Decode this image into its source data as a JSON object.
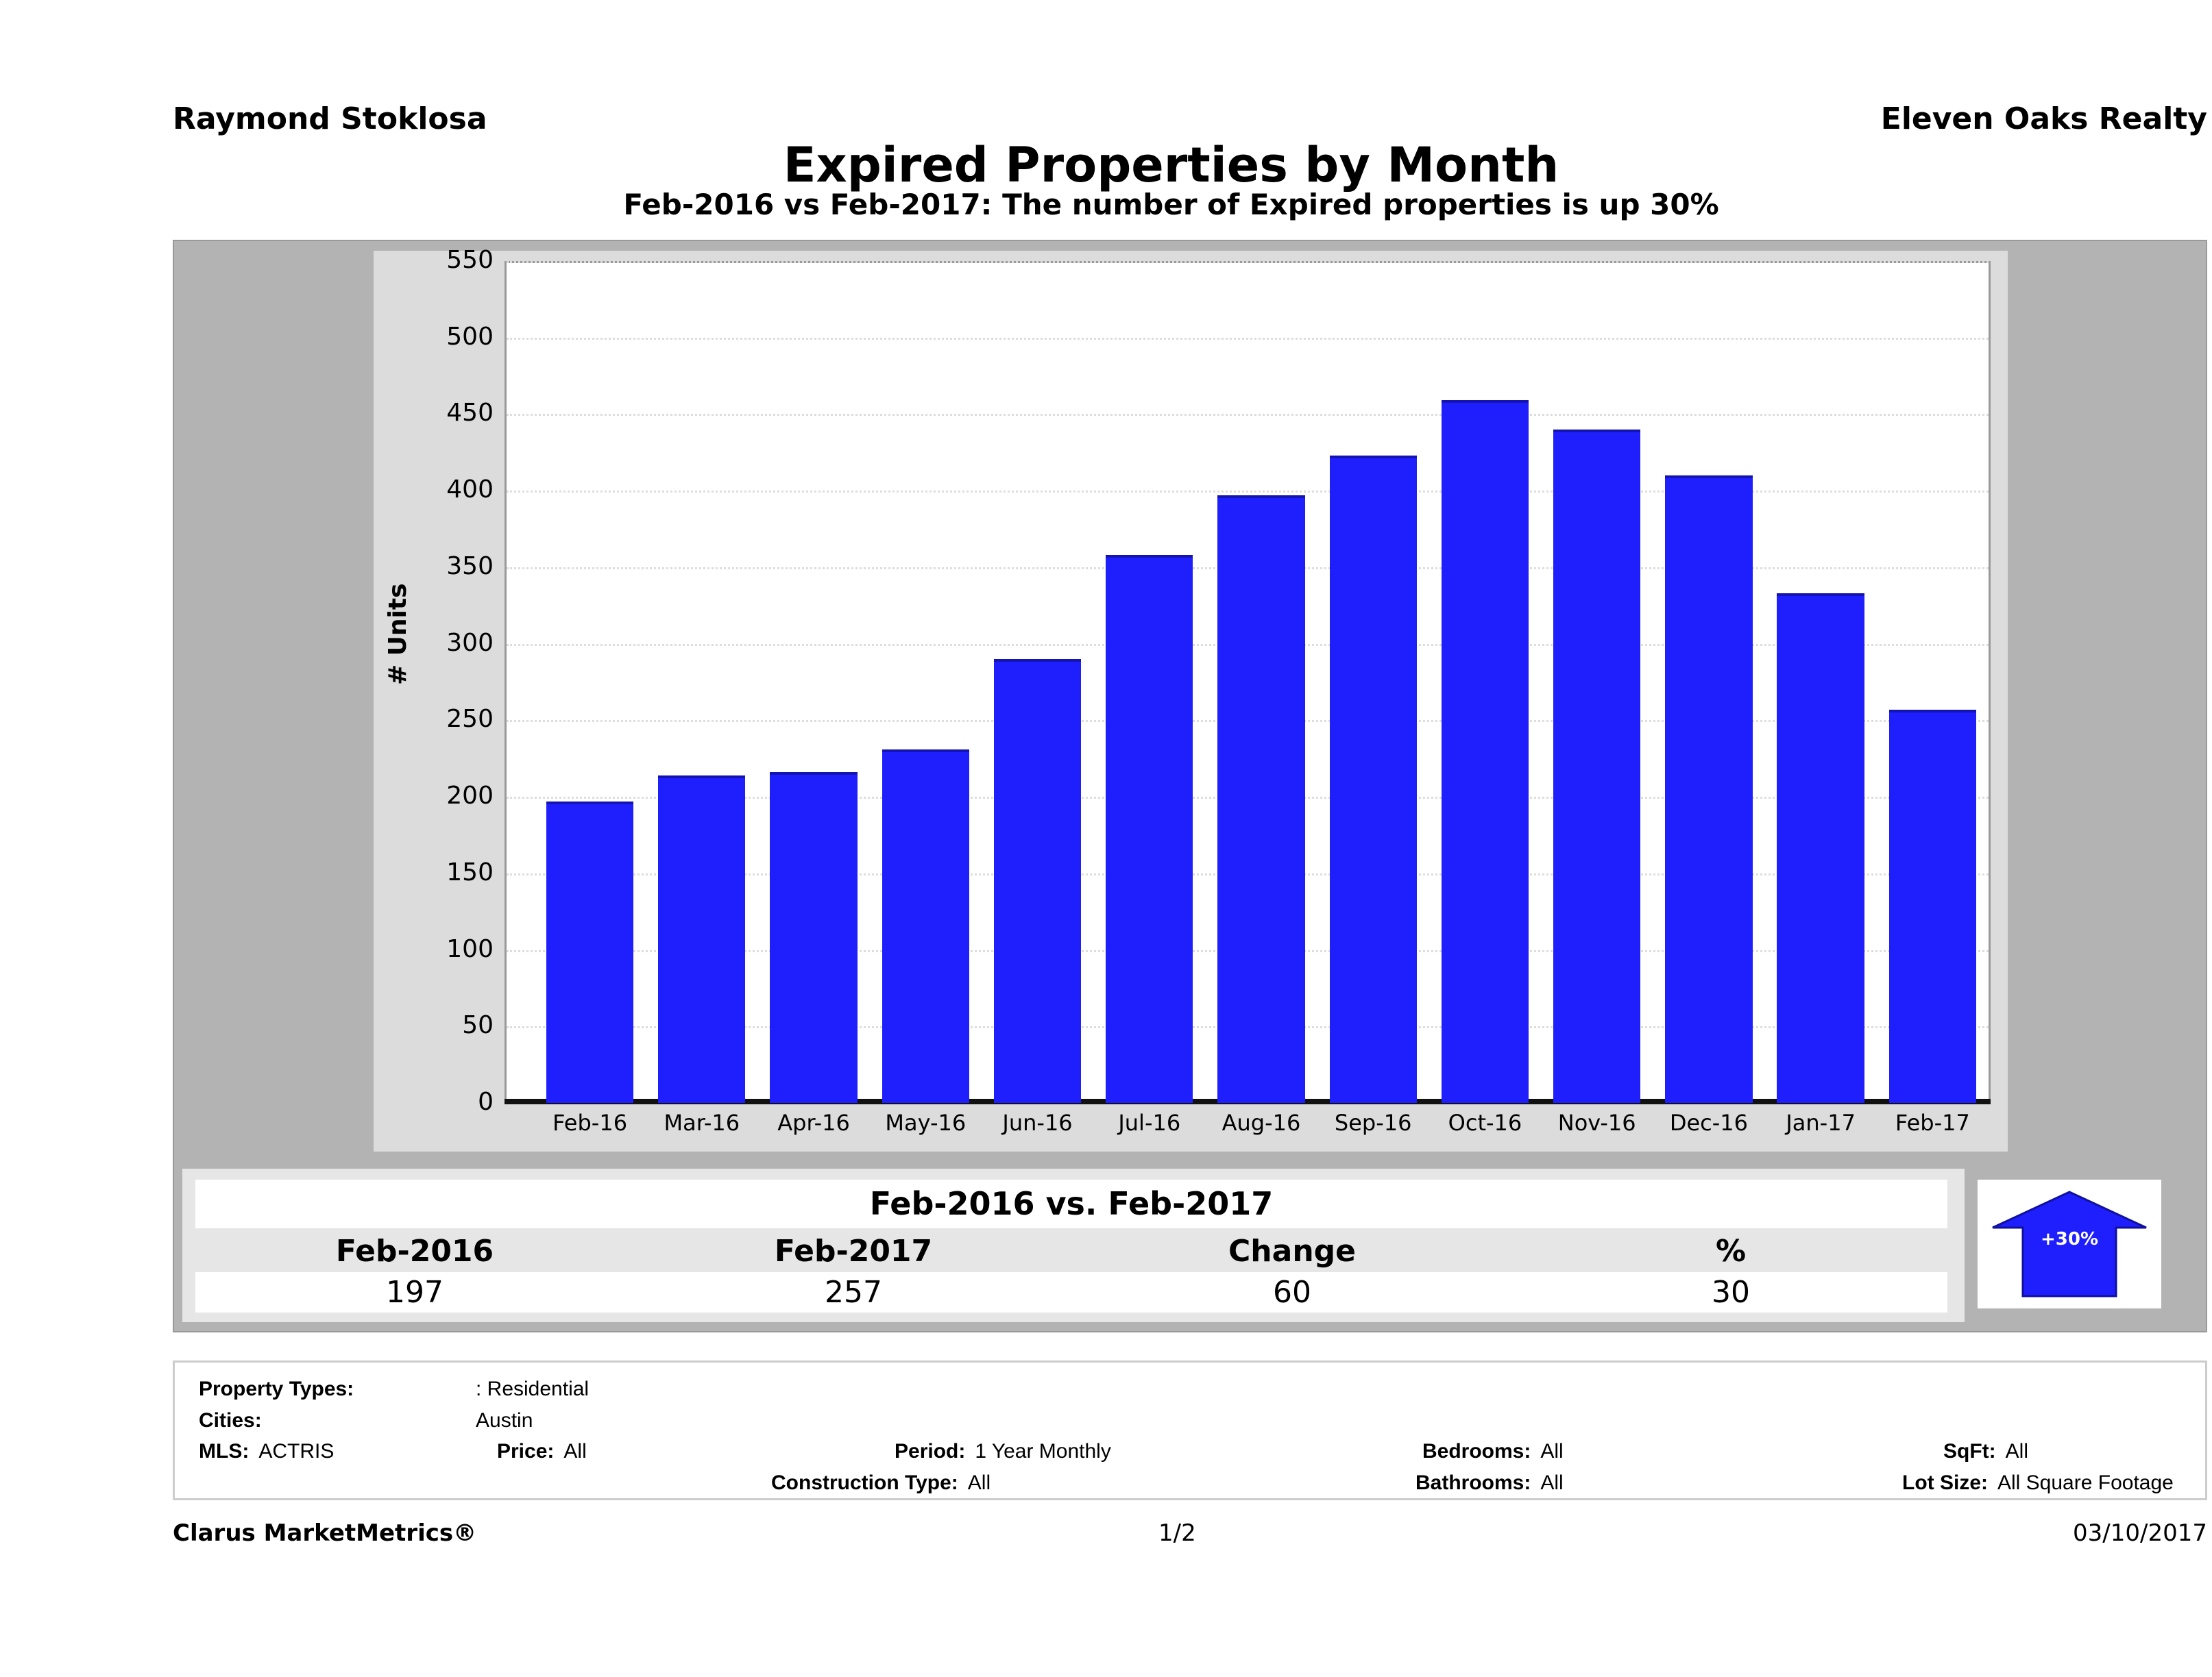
{
  "header": {
    "agent": "Raymond Stoklosa",
    "company": "Eleven Oaks Realty"
  },
  "chart_data": {
    "type": "bar",
    "title": "Expired Properties by Month",
    "subtitle": "Feb-2016 vs Feb-2017: The number of Expired  properties is up 30%",
    "ylabel": "# Units",
    "xlabel": "",
    "ylim": [
      0,
      550
    ],
    "yticks": [
      "0",
      "50",
      "100",
      "150",
      "200",
      "250",
      "300",
      "350",
      "400",
      "450",
      "500",
      "550"
    ],
    "categories": [
      "Feb-16",
      "Mar-16",
      "Apr-16",
      "May-16",
      "Jun-16",
      "Jul-16",
      "Aug-16",
      "Sep-16",
      "Oct-16",
      "Nov-16",
      "Dec-16",
      "Jan-17",
      "Feb-17"
    ],
    "values": [
      197,
      214,
      216,
      231,
      290,
      358,
      397,
      423,
      459,
      440,
      410,
      333,
      257
    ],
    "grid": true,
    "bar_color": "#1f1ffd"
  },
  "summary": {
    "title": "Feb-2016 vs. Feb-2017",
    "headers": [
      "Feb-2016",
      "Feb-2017",
      "Change",
      "%"
    ],
    "values": [
      "197",
      "257",
      "60",
      "30"
    ],
    "badge": "+30%",
    "badge_color": "#1f1ffd"
  },
  "info": {
    "property_types_label": "Property Types:",
    "property_types": ": Residential",
    "cities_label": "Cities:",
    "cities": "Austin",
    "mls_label": "MLS:",
    "mls": "ACTRIS",
    "price_label": "Price:",
    "price": "All",
    "period_label": "Period:",
    "period": "1 Year Monthly",
    "bedrooms_label": "Bedrooms:",
    "bedrooms": "All",
    "sqft_label": "SqFt:",
    "sqft": "All",
    "construction_label": "Construction Type:",
    "construction": "All",
    "bathrooms_label": "Bathrooms:",
    "bathrooms": "All",
    "lot_label": "Lot Size:",
    "lot": "All Square Footage"
  },
  "footer": {
    "brand": "Clarus MarketMetrics®",
    "page": "1/2",
    "date": "03/10/2017"
  }
}
